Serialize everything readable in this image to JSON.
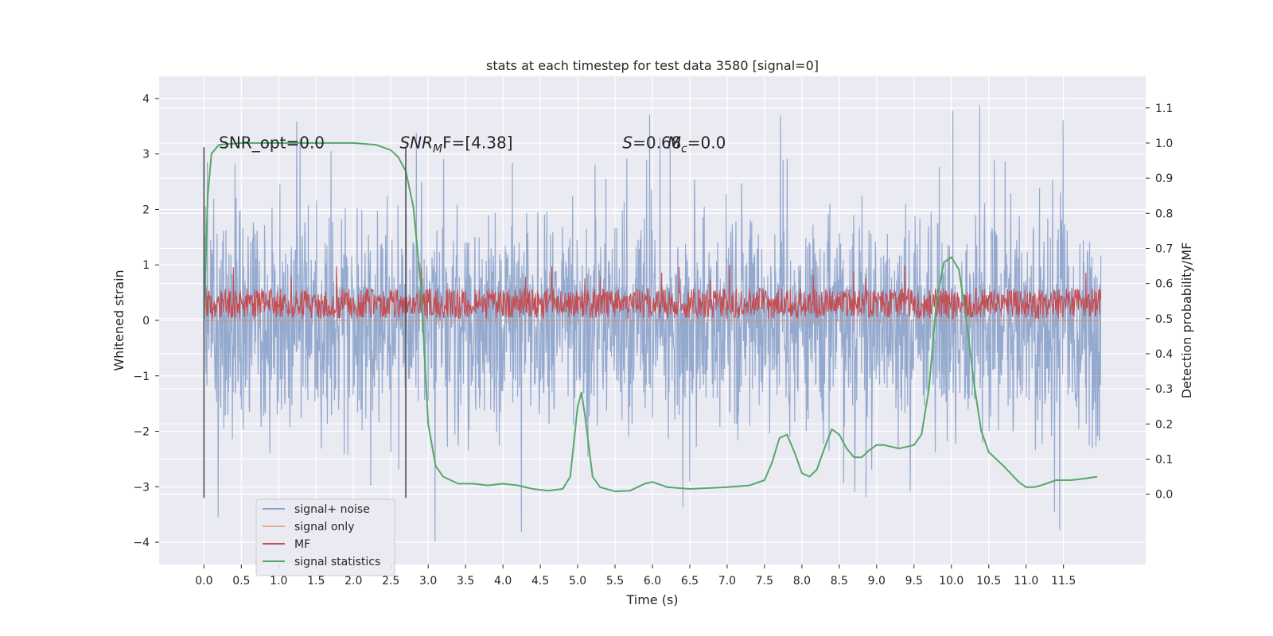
{
  "chart_data": {
    "type": "line",
    "title": "stats at each timestep for test data 3580 [signal=0]",
    "xlabel": "Time (s)",
    "ylabel_left": "Whitened strain",
    "ylabel_right": "Detection probability/MF",
    "xlim": [
      -0.6,
      12.6
    ],
    "ylim_left": [
      -4.4,
      4.4
    ],
    "ylim_right": [
      -0.2,
      1.19
    ],
    "x_ticks": [
      0.0,
      0.5,
      1.0,
      1.5,
      2.0,
      2.5,
      3.0,
      3.5,
      4.0,
      4.5,
      5.0,
      5.5,
      6.0,
      6.5,
      7.0,
      7.5,
      8.0,
      8.5,
      9.0,
      9.5,
      10.0,
      10.5,
      11.0,
      11.5
    ],
    "x_tick_labels": [
      "0.0",
      "0.5",
      "1.0",
      "1.5",
      "2.0",
      "2.5",
      "3.0",
      "3.5",
      "4.0",
      "4.5",
      "5.0",
      "5.5",
      "6.0",
      "6.5",
      "7.0",
      "7.5",
      "8.0",
      "8.5",
      "9.0",
      "9.5",
      "10.0",
      "10.5",
      "11.0",
      "11.5"
    ],
    "y_left_ticks": [
      -4,
      -3,
      -2,
      -1,
      0,
      1,
      2,
      3,
      4
    ],
    "y_left_tick_labels": [
      "−4",
      "−3",
      "−2",
      "−1",
      "0",
      "1",
      "2",
      "3",
      "4"
    ],
    "y_right_ticks": [
      0.0,
      0.1,
      0.2,
      0.3,
      0.4,
      0.5,
      0.6,
      0.7,
      0.8,
      0.9,
      1.0,
      1.1
    ],
    "y_right_tick_labels": [
      "0.0",
      "0.1",
      "0.2",
      "0.3",
      "0.4",
      "0.5",
      "0.6",
      "0.7",
      "0.8",
      "0.9",
      "1.0",
      "1.1"
    ],
    "grid": true,
    "legend_position": "lower-left",
    "series": [
      {
        "name": "signal+ noise",
        "axis": "left",
        "color": "#4c72b0",
        "x_range": [
          0.0,
          12.0
        ],
        "band_typical": [
          -2.3,
          2.3
        ],
        "peak_max": 4.0,
        "peak_min": -4.1,
        "values_summary": "dense noise fluctuating between roughly -2.5 and 2.5 with spikes up to ~4 and down to ~-4.1"
      },
      {
        "name": "signal only",
        "axis": "left",
        "color": "#dd8452",
        "x_range": [
          0.0,
          12.0
        ],
        "values_summary": "flat at 0 (no signal present)"
      },
      {
        "name": "MF",
        "axis": "left",
        "color": "#c44e52",
        "x_range": [
          0.0,
          12.0
        ],
        "band_typical": [
          0.05,
          0.6
        ],
        "peak_max": 1.0,
        "values_summary": "matched-filter output fluctuating between ~0 and ~0.6 with spikes to ~1.0"
      },
      {
        "name": "signal statistics",
        "axis": "right",
        "color": "#55a868",
        "x": [
          0.0,
          0.05,
          0.1,
          0.2,
          0.5,
          1.0,
          1.5,
          2.0,
          2.3,
          2.5,
          2.6,
          2.7,
          2.8,
          2.9,
          3.0,
          3.1,
          3.2,
          3.4,
          3.6,
          3.8,
          4.0,
          4.2,
          4.4,
          4.6,
          4.8,
          4.9,
          5.0,
          5.05,
          5.1,
          5.2,
          5.3,
          5.5,
          5.7,
          5.9,
          6.0,
          6.2,
          6.5,
          7.0,
          7.3,
          7.5,
          7.6,
          7.7,
          7.8,
          7.9,
          8.0,
          8.1,
          8.2,
          8.3,
          8.4,
          8.5,
          8.6,
          8.7,
          8.8,
          8.9,
          9.0,
          9.1,
          9.3,
          9.5,
          9.6,
          9.7,
          9.8,
          9.9,
          10.0,
          10.1,
          10.2,
          10.3,
          10.4,
          10.5,
          10.7,
          10.9,
          11.0,
          11.1,
          11.2,
          11.4,
          11.6,
          11.8,
          11.95
        ],
        "values": [
          0.5,
          0.85,
          0.97,
          0.995,
          1.0,
          1.0,
          1.0,
          1.0,
          0.995,
          0.98,
          0.96,
          0.92,
          0.82,
          0.6,
          0.2,
          0.08,
          0.05,
          0.03,
          0.03,
          0.025,
          0.03,
          0.025,
          0.015,
          0.01,
          0.015,
          0.05,
          0.25,
          0.29,
          0.22,
          0.05,
          0.02,
          0.008,
          0.01,
          0.03,
          0.035,
          0.02,
          0.015,
          0.02,
          0.025,
          0.04,
          0.09,
          0.16,
          0.17,
          0.12,
          0.06,
          0.05,
          0.07,
          0.13,
          0.185,
          0.17,
          0.13,
          0.105,
          0.105,
          0.125,
          0.14,
          0.14,
          0.13,
          0.14,
          0.17,
          0.3,
          0.55,
          0.66,
          0.675,
          0.64,
          0.5,
          0.32,
          0.18,
          0.12,
          0.08,
          0.035,
          0.02,
          0.02,
          0.025,
          0.04,
          0.04,
          0.045,
          0.05
        ]
      }
    ],
    "vertical_markers": [
      0.0,
      2.7
    ],
    "annotations": [
      {
        "x": 0.2,
        "y": 3.1,
        "text": "SNR_opt=0.0"
      },
      {
        "x": 2.62,
        "y": 3.1,
        "text": "SNR",
        "sub": "M",
        "tail": "F=[4.38]"
      },
      {
        "x": 5.6,
        "y": 3.1,
        "text": "S",
        "tail": "=0.68"
      },
      {
        "x": 6.2,
        "y": 3.1,
        "text": "M",
        "sub": "c",
        "tail": "=0.0"
      }
    ]
  }
}
